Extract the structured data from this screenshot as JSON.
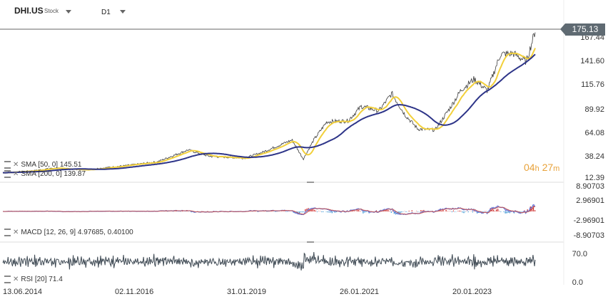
{
  "header": {
    "symbol": "DHI.US",
    "type": "Stock",
    "timeframe": "D1"
  },
  "last_price": "175.13",
  "countdown": {
    "h": "04",
    "h_unit": "h",
    "m": "27",
    "m_unit": "m"
  },
  "main_axis": [
    "167.44",
    "141.60",
    "115.76",
    "89.92",
    "64.08",
    "38.24",
    "12.39"
  ],
  "macd_axis": [
    "8.90703",
    "2.96901",
    "-2.96901",
    "-8.90703"
  ],
  "rsi_axis": [
    "70.0",
    "0.0"
  ],
  "indicators": {
    "sma50": "SMA [50, 0] 145.51",
    "sma200": "SMA [200, 0] 139.87",
    "macd": "MACD [12, 26, 9] 4.97685, 0.40100",
    "rsi": "RSI [20] 71.4"
  },
  "x_labels": [
    "13.06.2014",
    "02.11.2016",
    "31.01.2019",
    "26.01.2021",
    "20.01.2023"
  ],
  "colors": {
    "price": "#3c3c3c",
    "sma50": "#f2d03b",
    "sma200": "#2d3488",
    "macd_line": "#6b7bd6",
    "macd_signal": "#c45353",
    "hist_pos": "#cc2222",
    "hist_neg": "#2f8fd0",
    "rsi": "#3f4a54"
  },
  "chart_data": {
    "type": "line",
    "price": {
      "x": [
        "2014-06-13",
        "2015-01-01",
        "2015-06-01",
        "2016-01-01",
        "2016-11-02",
        "2017-06-01",
        "2018-01-01",
        "2018-06-01",
        "2019-01-31",
        "2019-06-01",
        "2020-01-01",
        "2020-03-20",
        "2020-06-01",
        "2020-09-01",
        "2021-01-26",
        "2021-05-01",
        "2021-09-01",
        "2021-12-01",
        "2022-03-01",
        "2022-06-01",
        "2022-10-01",
        "2023-01-20",
        "2023-04-01",
        "2023-07-01",
        "2023-10-01",
        "2024-01-01",
        "2024-04-01",
        "2024-07-01",
        "2024-09-01"
      ],
      "y": [
        19,
        21,
        24,
        22,
        27,
        31,
        44,
        37,
        35,
        41,
        55,
        34,
        55,
        75,
        76,
        92,
        87,
        106,
        83,
        67,
        66,
        92,
        110,
        122,
        109,
        149,
        150,
        141,
        175
      ]
    },
    "sma50_last": 145.51,
    "sma200_last": 139.87,
    "ylim": [
      12.39,
      175.13
    ],
    "macd_ylim": [
      -8.90703,
      8.90703
    ],
    "rsi_ylim": [
      0,
      100
    ]
  }
}
